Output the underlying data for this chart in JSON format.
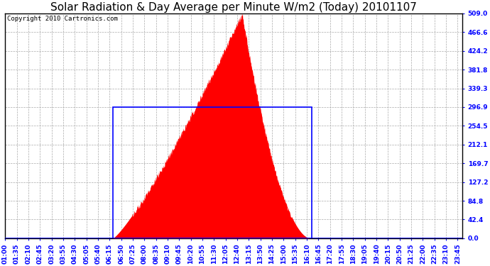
{
  "title": "Solar Radiation & Day Average per Minute W/m2 (Today) 20101107",
  "copyright": "Copyright 2010 Cartronics.com",
  "y_max": 509.0,
  "y_min": 0.0,
  "y_ticks": [
    0.0,
    42.4,
    84.8,
    127.2,
    169.7,
    212.1,
    254.5,
    296.9,
    339.3,
    381.8,
    424.2,
    466.6,
    509.0
  ],
  "bg_color": "#ffffff",
  "plot_bg_color": "#ffffff",
  "grid_color": "#aaaaaa",
  "fill_color": "#ff0000",
  "box_color": "#0000ff",
  "title_fontsize": 11,
  "copyright_fontsize": 6.5,
  "tick_fontsize": 6.5,
  "avg_value": 296.9,
  "box_start_time": "06:25",
  "box_end_time": "16:25",
  "solar_start_time": "06:25",
  "solar_peak_time": "12:55",
  "solar_end_time": "16:20"
}
